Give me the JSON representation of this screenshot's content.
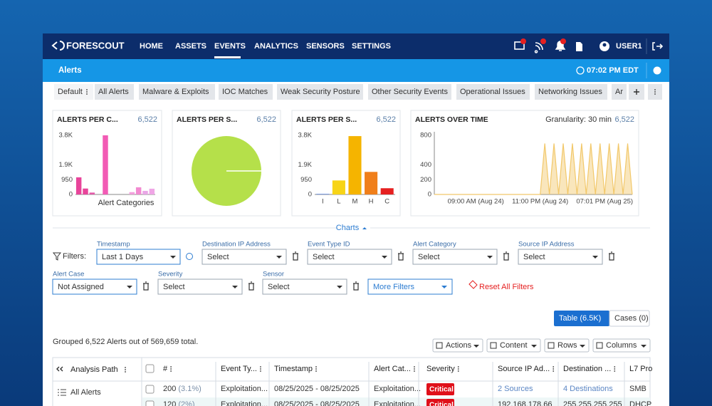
{
  "nav": {
    "logo": "FORESCOUT",
    "items": [
      "HOME",
      "ASSETS",
      "EVENTS",
      "ANALYTICS",
      "SENSORS",
      "SETTINGS"
    ],
    "user": "USER1"
  },
  "header": {
    "title": "Alerts",
    "time": "07:02 PM EDT"
  },
  "tabs": [
    "Default",
    "All Alerts",
    "Malware & Exploits",
    "IOC Matches",
    "Weak Security Posture",
    "Other Security Events",
    "Operational Issues",
    "Networking Issues",
    "Ar"
  ],
  "chart_data": [
    {
      "type": "bar",
      "title": "ALERTS PER C...",
      "count": "6,522",
      "x_label": "Alert Categories",
      "categories": [
        null,
        null,
        null,
        null,
        null,
        null,
        null,
        null,
        null,
        null,
        null,
        null
      ],
      "values": [
        1100,
        380,
        120,
        0,
        3800,
        0,
        0,
        0,
        150,
        460,
        230,
        370
      ],
      "colors": [
        "#e8449a",
        "#e8449a",
        "#e25aa8",
        "#e25aa8",
        "#f25bb5",
        "#e25aa8",
        "#e25aa8",
        "#e25aa8",
        "#f2a0dc",
        "#f28ad0",
        "#e9a6e6",
        "#f0a6e6"
      ],
      "ylim": [
        0,
        3800
      ],
      "yticks": [
        0,
        950,
        {
          "value": 1900,
          "label": "1.9K"
        },
        {
          "value": 3800,
          "label": "3.8K"
        }
      ]
    },
    {
      "type": "pie",
      "title": "ALERTS PER S...",
      "count": "6,522",
      "values": [
        6522
      ],
      "colors": [
        "#b5e04a"
      ]
    },
    {
      "type": "bar",
      "title": "ALERTS PER S...",
      "count": "6,522",
      "categories": [
        "I",
        "L",
        "M",
        "H",
        "C"
      ],
      "values": [
        30,
        900,
        3750,
        1450,
        400
      ],
      "colors": [
        "#3a6fd8",
        "#f7d417",
        "#f5b400",
        "#f07f1a",
        "#e52020"
      ],
      "ylim": [
        0,
        3800
      ],
      "yticks": [
        0,
        950,
        {
          "value": 1900,
          "label": "1.9K"
        },
        {
          "value": 3800,
          "label": "3.8K"
        }
      ]
    },
    {
      "type": "area",
      "title": "ALERTS OVER TIME",
      "count": "6,522",
      "granularity": "Granularity: 30 min",
      "color": "#f2c86a",
      "categories": [
        null,
        null,
        null,
        null,
        null,
        null,
        null,
        null,
        null,
        "09:00 AM (Aug 24)",
        null,
        null,
        null,
        null,
        null,
        null,
        null,
        null,
        null,
        null,
        null,
        null,
        null,
        "11:00 PM (Aug 24)",
        null,
        null,
        null,
        null,
        null,
        null,
        null,
        null,
        null,
        null,
        null,
        null,
        null,
        "07:01 PM (Aug 25)",
        null,
        null,
        null,
        null,
        null,
        null
      ],
      "values": [
        0,
        0,
        0,
        0,
        0,
        0,
        0,
        0,
        0,
        0,
        0,
        0,
        0,
        0,
        0,
        0,
        0,
        0,
        0,
        0,
        0,
        0,
        0,
        0,
        690,
        0,
        690,
        0,
        690,
        0,
        690,
        0,
        690,
        0,
        690,
        0,
        690,
        0,
        690,
        0,
        690,
        0,
        690,
        0
      ],
      "ylim": [
        0,
        800
      ],
      "yticks": [
        0,
        200,
        400,
        800
      ]
    }
  ],
  "charts_toggle": "Charts",
  "filters": {
    "label": "Filters:",
    "fields": [
      {
        "label": "Timestamp",
        "value": "Last 1 Days"
      },
      {
        "label": "Destination IP Address",
        "value": "Select"
      },
      {
        "label": "Event Type ID",
        "value": "Select"
      },
      {
        "label": "Alert Category",
        "value": "Select"
      },
      {
        "label": "Source IP Address",
        "value": "Select"
      },
      {
        "label": "Alert Case",
        "value": "Not Assigned"
      },
      {
        "label": "Severity",
        "value": "Select"
      },
      {
        "label": "Sensor",
        "value": "Select"
      }
    ],
    "more": "More Filters",
    "reset": "Reset All Filters"
  },
  "view": {
    "table": "Table (6.5K)",
    "cases": "Cases (0)"
  },
  "summary": "Grouped 6,522 Alerts out of 569,659 total.",
  "toolbar": [
    "Actions",
    "Content",
    "Rows",
    "Columns"
  ],
  "sidebar": {
    "title": "Analysis Path",
    "item": "All Alerts"
  },
  "table": {
    "columns": [
      "#",
      "Event Ty...",
      "Timestamp",
      "Alert Cat...",
      "Severity",
      "Source IP Ad...",
      "Destination ...",
      "L7 Pro"
    ],
    "rows": [
      {
        "count": "200",
        "share": "(3.1%)",
        "event_type": "Exploitation...",
        "timestamp": "08/25/2025 - 08/25/2025",
        "category": "Exploitation...",
        "severity": "Critical",
        "source": "2 Sources",
        "destination": "4 Destinations",
        "protocol": "SMB"
      },
      {
        "count": "120",
        "share": "(2%)",
        "event_type": "Exploitation...",
        "timestamp": "08/25/2025 - 08/25/2025",
        "category": "Exploitation...",
        "severity": "Critical",
        "source": "192.168.178.66",
        "destination": "255.255.255.255",
        "protocol": "DHCP"
      }
    ]
  }
}
